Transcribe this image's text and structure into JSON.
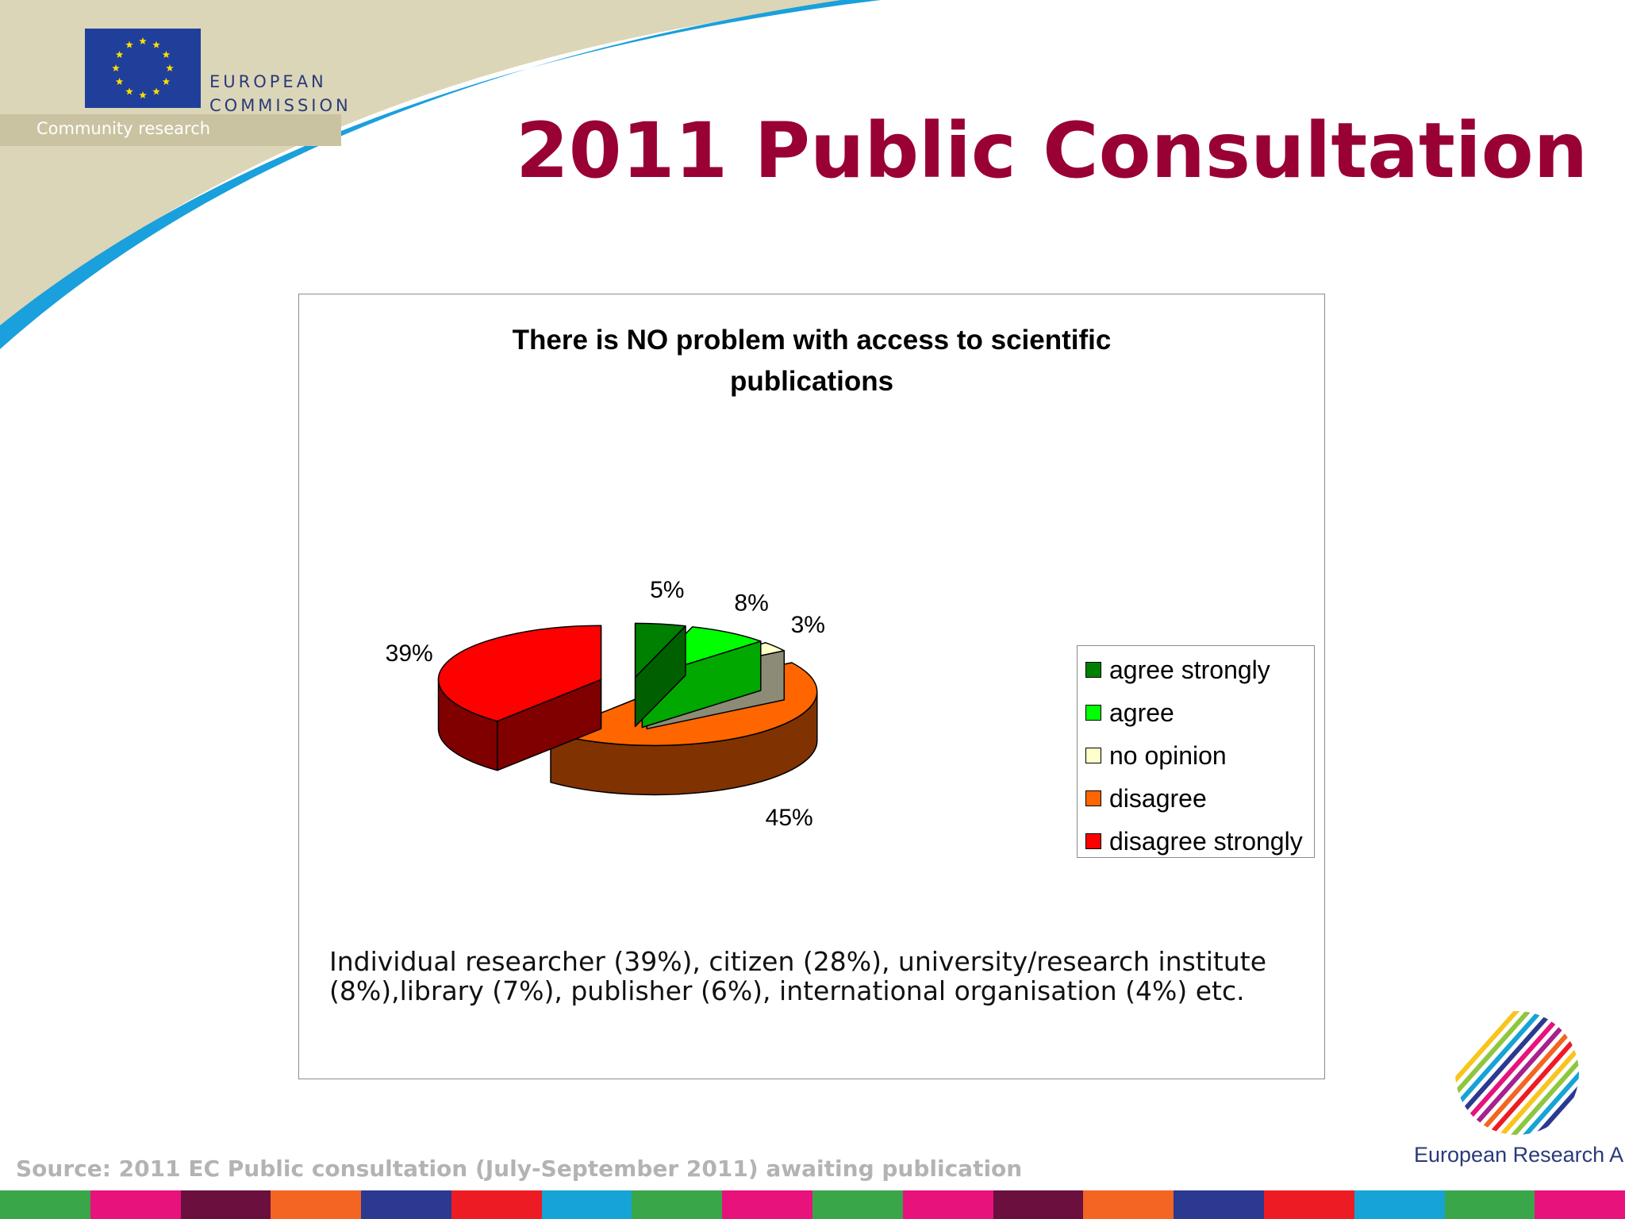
{
  "header": {
    "org_line1": "EUROPEAN",
    "org_line2": "COMMISSION",
    "subtitle": "Community research",
    "title": "2011 Public Consultation"
  },
  "chart_data": {
    "type": "pie",
    "title": "There is NO problem with access to scientific publications",
    "title_lines": [
      "There is NO problem with access to scientific",
      "publications"
    ],
    "three_d": true,
    "legend_position": "right",
    "slices": [
      {
        "label": "agree strongly",
        "value": 5,
        "value_label": "5%",
        "color": "#008000",
        "side_color": "#006000"
      },
      {
        "label": "agree",
        "value": 8,
        "value_label": "8%",
        "color": "#00ff00",
        "side_color": "#00a800"
      },
      {
        "label": "no opinion",
        "value": 3,
        "value_label": "3%",
        "color": "#ffffcc",
        "side_color": "#8c8c76"
      },
      {
        "label": "disagree",
        "value": 45,
        "value_label": "45%",
        "color": "#ff6600",
        "side_color": "#803300"
      },
      {
        "label": "disagree strongly",
        "value": 39,
        "value_label": "39%",
        "color": "#ff0000",
        "side_color": "#800000"
      }
    ]
  },
  "note": "Individual researcher (39%), citizen (28%), university/research institute (8%),library (7%), publisher (6%), international organisation (4%) etc.",
  "source": "Source: 2011 EC Public consultation (July-September 2011) awaiting publication",
  "era_label": "European Research Area",
  "footer_colors": [
    "#3aa64a",
    "#e8127c",
    "#6a0f3e",
    "#f26522",
    "#2b3990",
    "#ed1c24",
    "#16a3d6",
    "#3aa64a",
    "#e8127c",
    "#3aa64a",
    "#e8127c",
    "#6a0f3e",
    "#f26522",
    "#2b3990",
    "#ed1c24",
    "#16a3d6",
    "#3aa64a",
    "#e8127c"
  ]
}
